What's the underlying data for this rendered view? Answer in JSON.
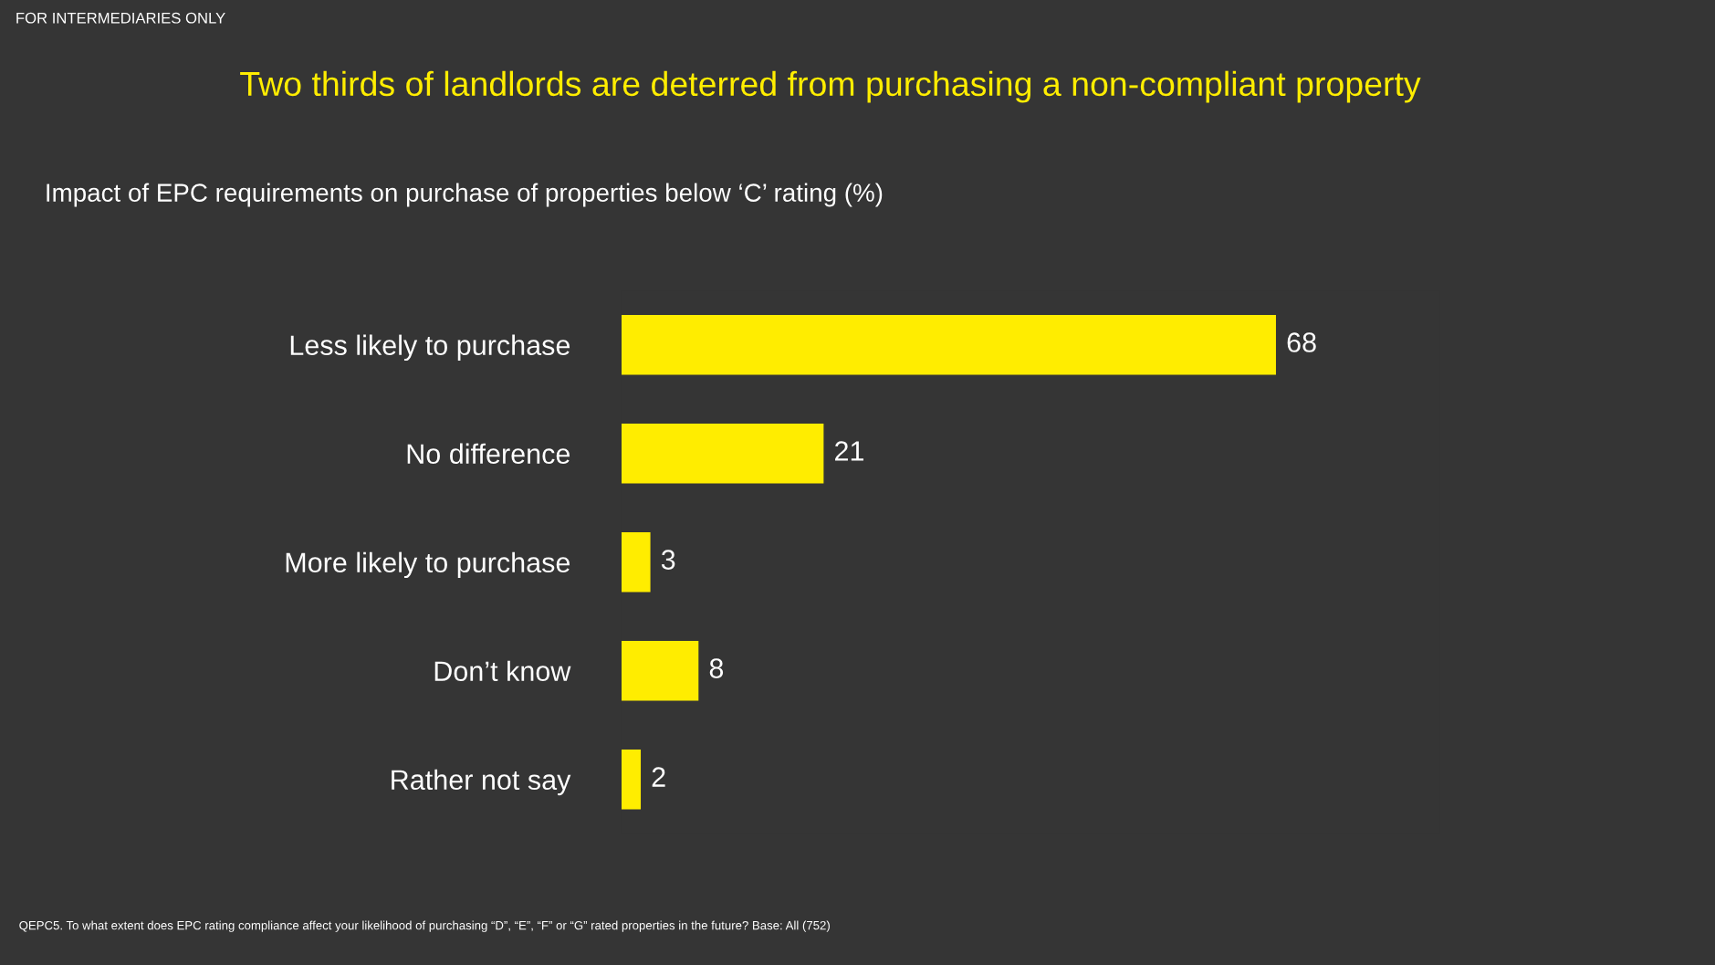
{
  "chart_data": {
    "type": "bar",
    "orientation": "horizontal",
    "title": "Two thirds of landlords are deterred from purchasing a non-compliant property",
    "subtitle": "Impact of EPC requirements on purchase of properties below ‘C’ rating (%)",
    "categories": [
      "Less likely to purchase",
      "No difference",
      "More likely to purchase",
      "Don’t know",
      "Rather not say"
    ],
    "values": [
      68,
      21,
      3,
      8,
      2
    ],
    "color": "#ffed00",
    "data_labels": true,
    "grid": false,
    "legend": false,
    "tick_labels": "y",
    "annotations": [
      "FOR INTERMEDIARIES ONLY",
      "QEPC5. To what extent does EPC rating compliance affect your likelihood of purchasing “D”, “E”, “F” or “G” rated properties in the future? Base: All (752)"
    ]
  }
}
